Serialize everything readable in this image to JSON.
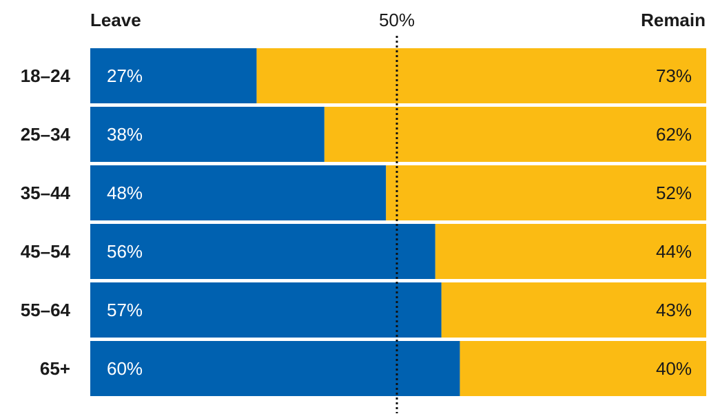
{
  "chart_data": {
    "type": "bar",
    "orientation": "horizontal",
    "stacked": true,
    "categories": [
      "18–24",
      "25–34",
      "35–44",
      "45–54",
      "55–64",
      "65+"
    ],
    "series": [
      {
        "name": "Leave",
        "values": [
          27,
          38,
          48,
          56,
          57,
          60
        ],
        "color": "#0061b0"
      },
      {
        "name": "Remain",
        "values": [
          73,
          62,
          52,
          44,
          43,
          40
        ],
        "color": "#fbbb13"
      }
    ],
    "value_labels": {
      "Leave": [
        "27%",
        "38%",
        "48%",
        "56%",
        "57%",
        "60%"
      ],
      "Remain": [
        "73%",
        "62%",
        "52%",
        "44%",
        "43%",
        "40%"
      ]
    },
    "reference_line": {
      "value": 50,
      "label": "50%"
    },
    "xlim": [
      0,
      100
    ],
    "grid": false
  }
}
